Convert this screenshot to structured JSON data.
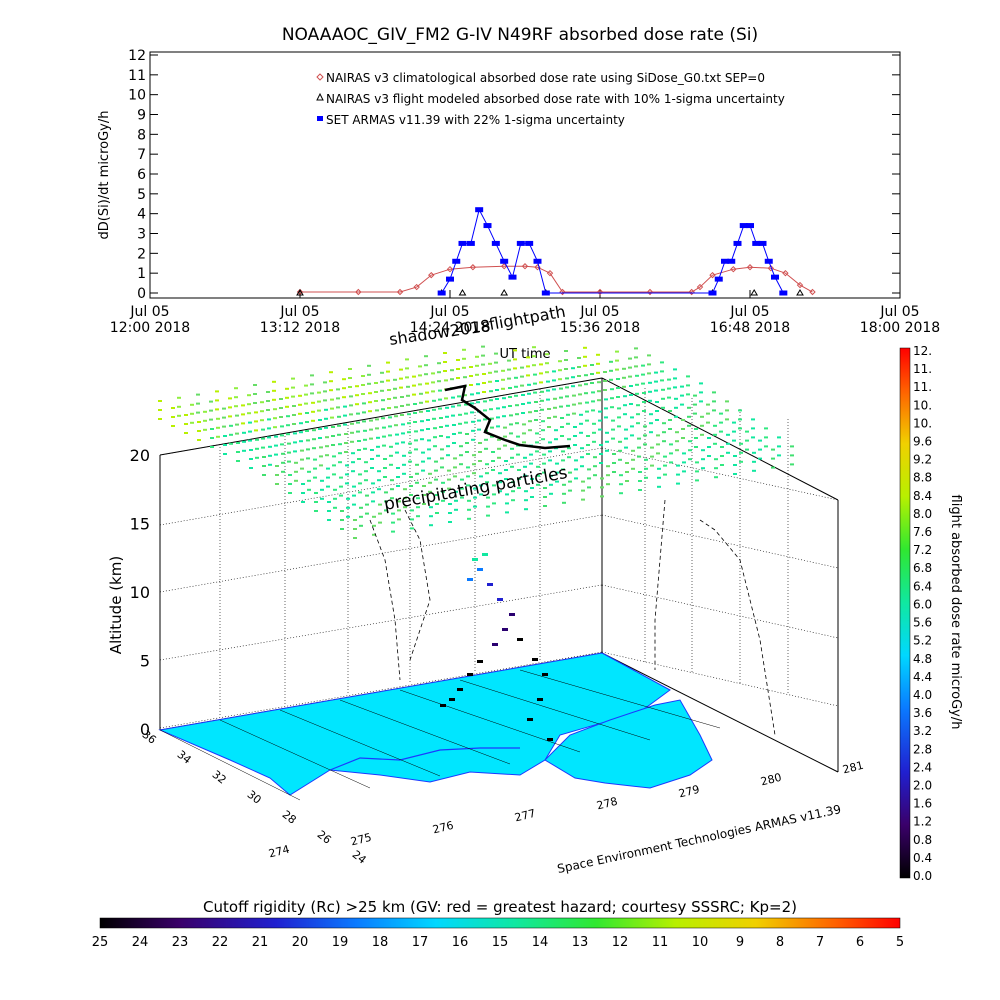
{
  "title": "NOAAAOC_GIV_FM2 G-IV    N49RF  absorbed dose rate (Si)",
  "top_chart": {
    "ylabel": "dD(Si)/dt microGy/h",
    "xlabel": "UT time",
    "y_ticks": [
      "0",
      "1",
      "2",
      "3",
      "4",
      "5",
      "6",
      "7",
      "8",
      "9",
      "10",
      "11",
      "12"
    ],
    "x_ticks": [
      {
        "l1": "Jul 05",
        "l2": "12:00 2018"
      },
      {
        "l1": "Jul 05",
        "l2": "13:12 2018"
      },
      {
        "l1": "Jul 05",
        "l2": "14:24 2018"
      },
      {
        "l1": "Jul 05",
        "l2": "15:36 2018"
      },
      {
        "l1": "Jul 05",
        "l2": "16:48 2018"
      },
      {
        "l1": "Jul 05",
        "l2": "18:00 2018"
      }
    ],
    "legend": [
      "NAIRAS v3 climatological absorbed dose rate using SiDose_G0.txt SEP=0",
      "NAIRAS v3 flight modeled absorbed dose rate with 10% 1-sigma uncertainty",
      "SET ARMAS v11.39 with 22% 1-sigma uncertainty"
    ],
    "colors": {
      "nairas_clim": "#d05050",
      "nairas_flight": "#000000",
      "armas": "#0000ff"
    }
  },
  "chart_data": [
    {
      "type": "scatter",
      "title": "NOAAAOC_GIV_FM2 G-IV    N49RF  absorbed dose rate (Si)",
      "xlabel": "UT time",
      "ylabel": "dD(Si)/dt microGy/h",
      "xlim": [
        "2018-07-05 12:00",
        "2018-07-05 18:00"
      ],
      "ylim": [
        0,
        12
      ],
      "series": [
        {
          "name": "NAIRAS v3 climatological absorbed dose rate using SiDose_G0.txt SEP=0",
          "x": [
            "13:12",
            "13:40",
            "14:00",
            "14:08",
            "14:15",
            "14:24",
            "14:35",
            "14:50",
            "15:00",
            "15:06",
            "15:12",
            "15:18",
            "15:36",
            "16:00",
            "16:20",
            "16:24",
            "16:30",
            "16:40",
            "16:48",
            "16:58",
            "17:05",
            "17:12",
            "17:18"
          ],
          "y": [
            0.05,
            0.05,
            0.05,
            0.3,
            0.9,
            1.2,
            1.3,
            1.35,
            1.35,
            1.3,
            1.0,
            0.05,
            0.05,
            0.05,
            0.05,
            0.3,
            0.9,
            1.2,
            1.3,
            1.25,
            1.0,
            0.4,
            0.05
          ]
        },
        {
          "name": "NAIRAS v3 flight modeled absorbed dose rate with 10% 1-sigma uncertainty",
          "x": [
            "13:12",
            "14:20",
            "14:30",
            "14:50",
            "15:10",
            "16:30",
            "16:50",
            "17:12"
          ],
          "y": [
            0.0,
            0.0,
            0.0,
            0.0,
            0.0,
            0.0,
            0.0,
            0.0
          ]
        },
        {
          "name": "SET ARMAS v11.39 with 22% 1-sigma uncertainty",
          "x": [
            "14:20",
            "14:24",
            "14:27",
            "14:30",
            "14:34",
            "14:38",
            "14:42",
            "14:46",
            "14:50",
            "14:54",
            "14:58",
            "15:02",
            "15:06",
            "15:10",
            "16:30",
            "16:33",
            "16:36",
            "16:39",
            "16:42",
            "16:45",
            "16:48",
            "16:51",
            "16:54",
            "16:57",
            "17:00",
            "17:04"
          ],
          "y": [
            0.0,
            0.7,
            1.6,
            2.5,
            2.5,
            4.2,
            3.4,
            2.5,
            1.6,
            0.8,
            2.5,
            2.5,
            1.6,
            0.0,
            0.0,
            0.7,
            1.6,
            1.6,
            2.5,
            3.4,
            3.4,
            2.5,
            2.5,
            1.6,
            0.8,
            0.0
          ]
        }
      ]
    },
    {
      "type": "scatter",
      "xlabel": "Space Environment Technologies ARMAS v11.39",
      "ylabel": "Altitude (km)",
      "annotations": [
        "shadow2018",
        "flightpath",
        "precipitating particles"
      ],
      "z_ticks": [
        "0",
        "5",
        "10",
        "15",
        "20"
      ],
      "x_ticks": [
        "274",
        "275",
        "276",
        "277",
        "278",
        "279",
        "280",
        "281"
      ],
      "y_ticks": [
        "36",
        "34",
        "32",
        "30",
        "28",
        "26",
        "24"
      ],
      "flight_points": [
        {
          "lon": 277.9,
          "lat": 30.5,
          "alt_km": 0.0,
          "dose": 0.2
        },
        {
          "lon": 277.6,
          "lat": 31.0,
          "alt_km": 2.0,
          "dose": 0.3
        },
        {
          "lon": 277.2,
          "lat": 31.6,
          "alt_km": 5.0,
          "dose": 0.5
        },
        {
          "lon": 277.0,
          "lat": 32.0,
          "alt_km": 7.0,
          "dose": 1.0
        },
        {
          "lon": 276.8,
          "lat": 32.4,
          "alt_km": 9.0,
          "dose": 2.0
        },
        {
          "lon": 276.6,
          "lat": 32.8,
          "alt_km": 11.0,
          "dose": 3.0
        },
        {
          "lon": 276.5,
          "lat": 33.0,
          "alt_km": 12.3,
          "dose": 4.0
        }
      ]
    }
  ],
  "colorbar_right": {
    "label": "flight absorbed dose rate microGy/h",
    "ticks": [
      "0.0",
      "0.4",
      "0.8",
      "1.2",
      "1.6",
      "2.0",
      "2.4",
      "2.8",
      "3.2",
      "3.6",
      "4.0",
      "4.4",
      "4.8",
      "5.2",
      "5.6",
      "6.0",
      "6.4",
      "6.8",
      "7.2",
      "7.6",
      "8.0",
      "8.4",
      "8.8",
      "9.2",
      "9.6",
      "10.",
      "10.",
      "11.",
      "11.",
      "12."
    ]
  },
  "colorbar_bottom": {
    "label": "Cutoff rigidity (Rc) >25 km (GV: red = greatest hazard; courtesy SSSRC; Kp=2)",
    "ticks": [
      "25",
      "24",
      "23",
      "22",
      "21",
      "20",
      "19",
      "18",
      "17",
      "16",
      "15",
      "14",
      "13",
      "12",
      "11",
      "10",
      "9",
      "8",
      "7",
      "6",
      "5"
    ]
  },
  "map_colors": {
    "land": "#00e6ff",
    "coast": "#1a3aff",
    "grid_fill_low": "#66dd66",
    "grid_fill_high": "#aaee44"
  }
}
